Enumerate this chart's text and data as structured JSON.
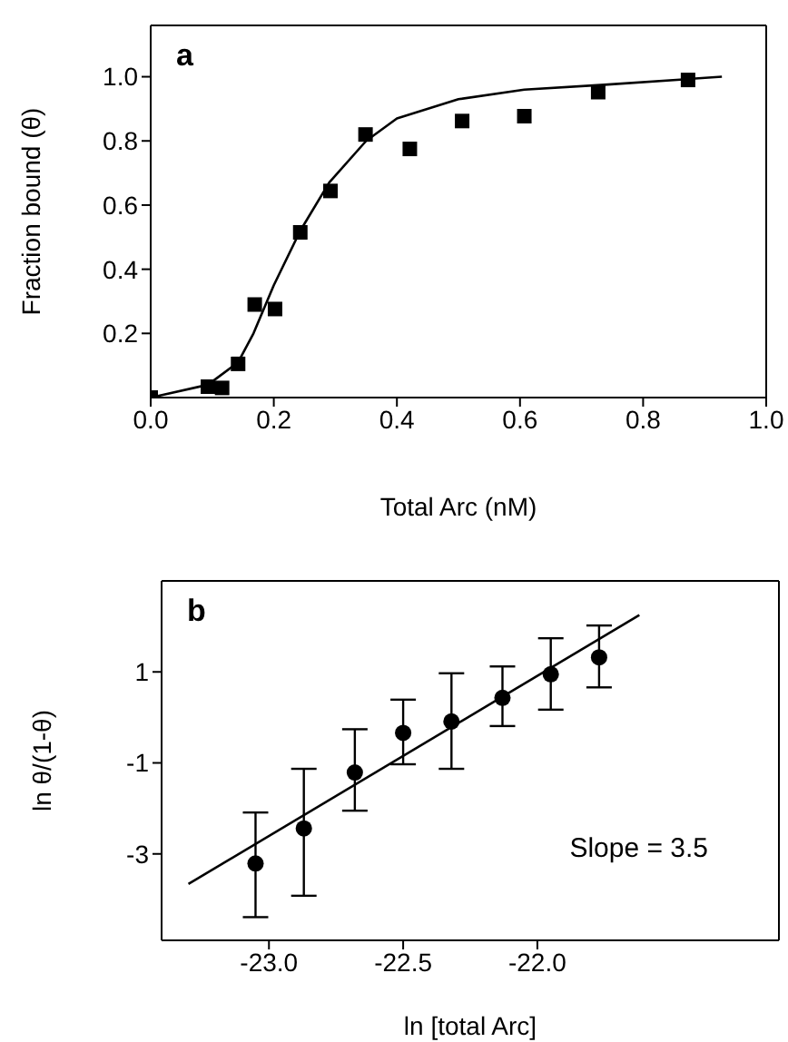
{
  "chart_data": [
    {
      "type": "scatter",
      "xlabel": "Total Arc (nM)",
      "ylabel": "Fraction bound (θ)",
      "annotations": [
        "a"
      ],
      "xlim": [
        0,
        1.0
      ],
      "xticks": [
        {
          "value": 0,
          "label": "0.0"
        },
        0.2,
        0.4,
        0.6,
        0.8,
        {
          "value": 1,
          "label": "1.0"
        }
      ],
      "ylim": [
        0,
        1.16
      ],
      "yticks": [
        0.2,
        0.4,
        0.6,
        0.8,
        {
          "value": 1,
          "label": "1.0"
        }
      ],
      "series": [
        {
          "marker": "square",
          "color": "#000000",
          "x": [
            0,
            0.093,
            0.116,
            0.142,
            0.169,
            0.202,
            0.243,
            0.292,
            0.349,
            0.421,
            0.506,
            0.607,
            0.727,
            0.873
          ],
          "values": [
            0,
            0.034,
            0.03,
            0.105,
            0.29,
            0.276,
            0.515,
            0.644,
            0.82,
            0.775,
            0.862,
            0.877,
            0.952,
            0.99
          ]
        },
        {
          "type": "line",
          "marker": "none",
          "color": "#000000",
          "x": [
            0,
            0.093,
            0.142,
            0.167,
            0.2,
            0.243,
            0.29,
            0.35,
            0.4,
            0.5,
            0.607,
            0.737,
            0.928
          ],
          "values": [
            0,
            0.04,
            0.11,
            0.2,
            0.35,
            0.52,
            0.67,
            0.8,
            0.87,
            0.93,
            0.96,
            0.975,
            1.0
          ]
        }
      ]
    },
    {
      "type": "scatter",
      "xlabel": "ln [total Arc]",
      "ylabel": "ln θ/(1-θ)",
      "annotations": [
        "b",
        "Slope = 3.5"
      ],
      "xlim": [
        -23.4,
        -21.1
      ],
      "xticks": [
        {
          "value": -23,
          "label": "-23.0"
        },
        -22.5,
        {
          "value": -22,
          "label": "-22.0"
        }
      ],
      "ylim": [
        -4.9,
        3.0
      ],
      "yticks": [
        -3,
        -1,
        1
      ],
      "series": [
        {
          "marker": "circle",
          "color": "#000000",
          "x": [
            -23.05,
            -22.87,
            -22.68,
            -22.5,
            -22.32,
            -22.13,
            -21.95,
            -21.77
          ],
          "values": [
            -3.21,
            -2.44,
            -1.21,
            -0.34,
            -0.09,
            0.43,
            0.95,
            1.32
          ],
          "errors": [
            [
              -4.39,
              -2.09
            ],
            [
              -3.92,
              -1.13
            ],
            [
              -2.05,
              -0.26
            ],
            [
              -1.03,
              0.39
            ],
            [
              -1.13,
              0.97
            ],
            [
              -0.19,
              1.12
            ],
            [
              0.17,
              1.74
            ],
            [
              0.66,
              2.02
            ]
          ]
        },
        {
          "type": "line",
          "marker": "none",
          "color": "#000000",
          "x": [
            -23.3,
            -21.62
          ],
          "values": [
            -3.66,
            2.25
          ]
        }
      ]
    }
  ]
}
